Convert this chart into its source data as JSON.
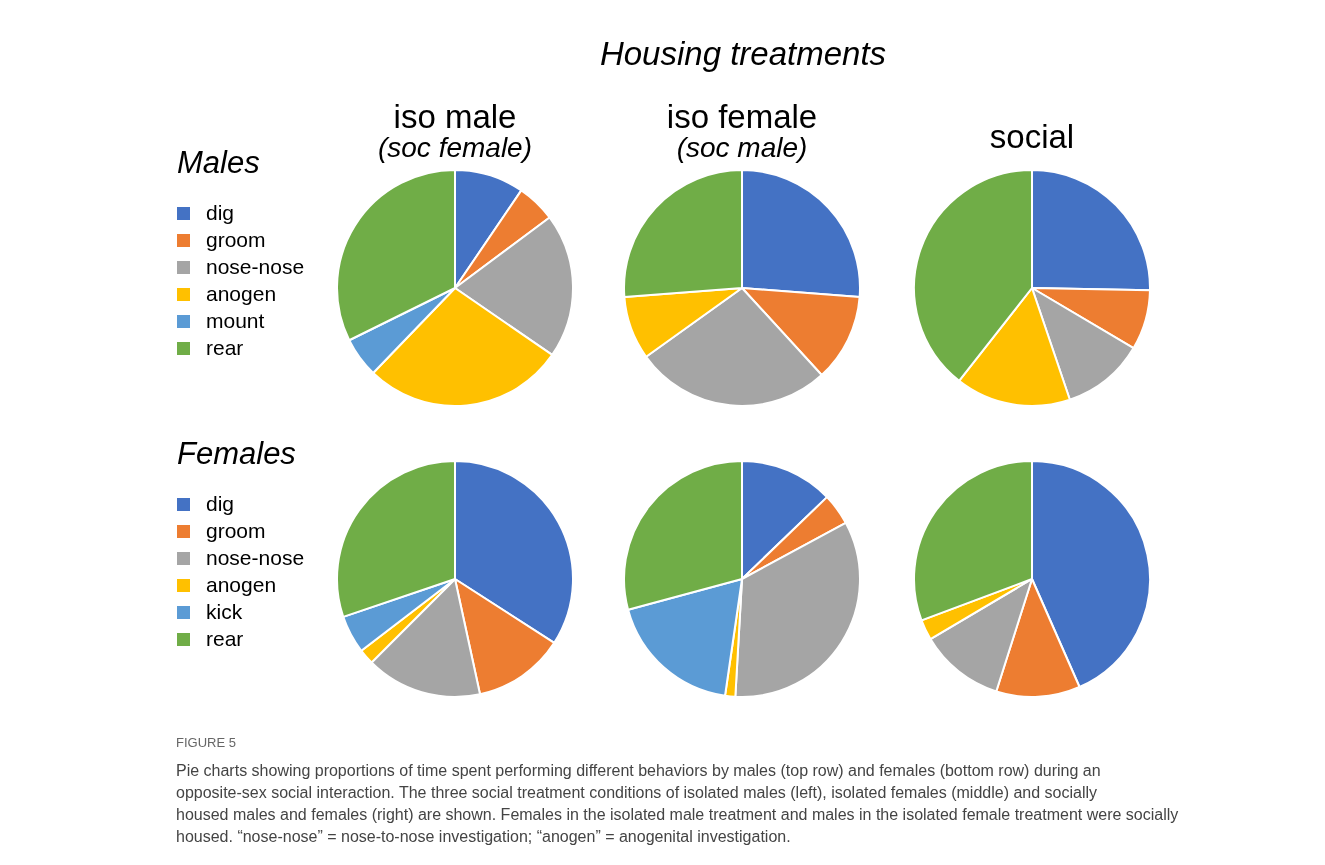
{
  "chart_data": [
    {
      "type": "pie",
      "title": "iso male",
      "subtitle": "(soc female)",
      "legend_title": "Males",
      "legend": "left",
      "categories": [
        "dig",
        "groom",
        "nose-nose",
        "anogen",
        "mount",
        "rear"
      ],
      "values": [
        9.5,
        5.3,
        19.8,
        27.6,
        5.5,
        32.3
      ],
      "colors": [
        "#4472c4",
        "#ed7d31",
        "#a5a5a5",
        "#ffc000",
        "#5b9bd5",
        "#70ad47"
      ],
      "annotations": [
        "Housing treatments",
        "FIGURE 5",
        "Pie charts showing proportions of time spent performing different behaviors by males (top row) and females (bottom row) during an opposite-sex social interaction. The three social treatment conditions of isolated males (left), isolated females (middle) and socially housed males and females (right) are shown. Females in the isolated male treatment and males in the isolated female treatment were socially housed. “nose-nose” = nose-to-nose investigation; “anogen” = anogenital investigation."
      ]
    },
    {
      "type": "pie",
      "title": "iso female",
      "subtitle": "(soc male)",
      "categories": [
        null,
        null,
        null,
        null,
        null
      ],
      "values": [
        26.2,
        12.0,
        26.9,
        8.7,
        26.2
      ],
      "colors": [
        "#4472c4",
        "#ed7d31",
        "#a5a5a5",
        "#ffc000",
        "#70ad47"
      ]
    },
    {
      "type": "pie",
      "title": "social",
      "categories": [
        null,
        null,
        null,
        null,
        null
      ],
      "values": [
        25.3,
        8.2,
        11.3,
        15.8,
        39.4
      ],
      "colors": [
        "#4472c4",
        "#ed7d31",
        "#a5a5a5",
        "#ffc000",
        "#70ad47"
      ]
    },
    {
      "type": "pie",
      "legend_title": "Females",
      "legend": "left",
      "categories": [
        "dig",
        "groom",
        "nose-nose",
        "anogen",
        "kick",
        "rear"
      ],
      "values": [
        34.1,
        12.5,
        15.9,
        2.1,
        5.2,
        30.2
      ],
      "colors": [
        "#4472c4",
        "#ed7d31",
        "#a5a5a5",
        "#ffc000",
        "#5b9bd5",
        "#70ad47"
      ]
    },
    {
      "type": "pie",
      "categories": [
        null,
        null,
        null,
        null,
        null,
        null
      ],
      "values": [
        12.8,
        4.3,
        33.8,
        1.4,
        18.5,
        29.2
      ],
      "colors": [
        "#4472c4",
        "#ed7d31",
        "#a5a5a5",
        "#ffc000",
        "#5b9bd5",
        "#70ad47"
      ]
    },
    {
      "type": "pie",
      "categories": [
        null,
        null,
        null,
        null,
        null
      ],
      "values": [
        43.4,
        11.5,
        11.6,
        2.8,
        30.7
      ],
      "colors": [
        "#4472c4",
        "#ed7d31",
        "#a5a5a5",
        "#ffc000",
        "#70ad47"
      ]
    }
  ]
}
